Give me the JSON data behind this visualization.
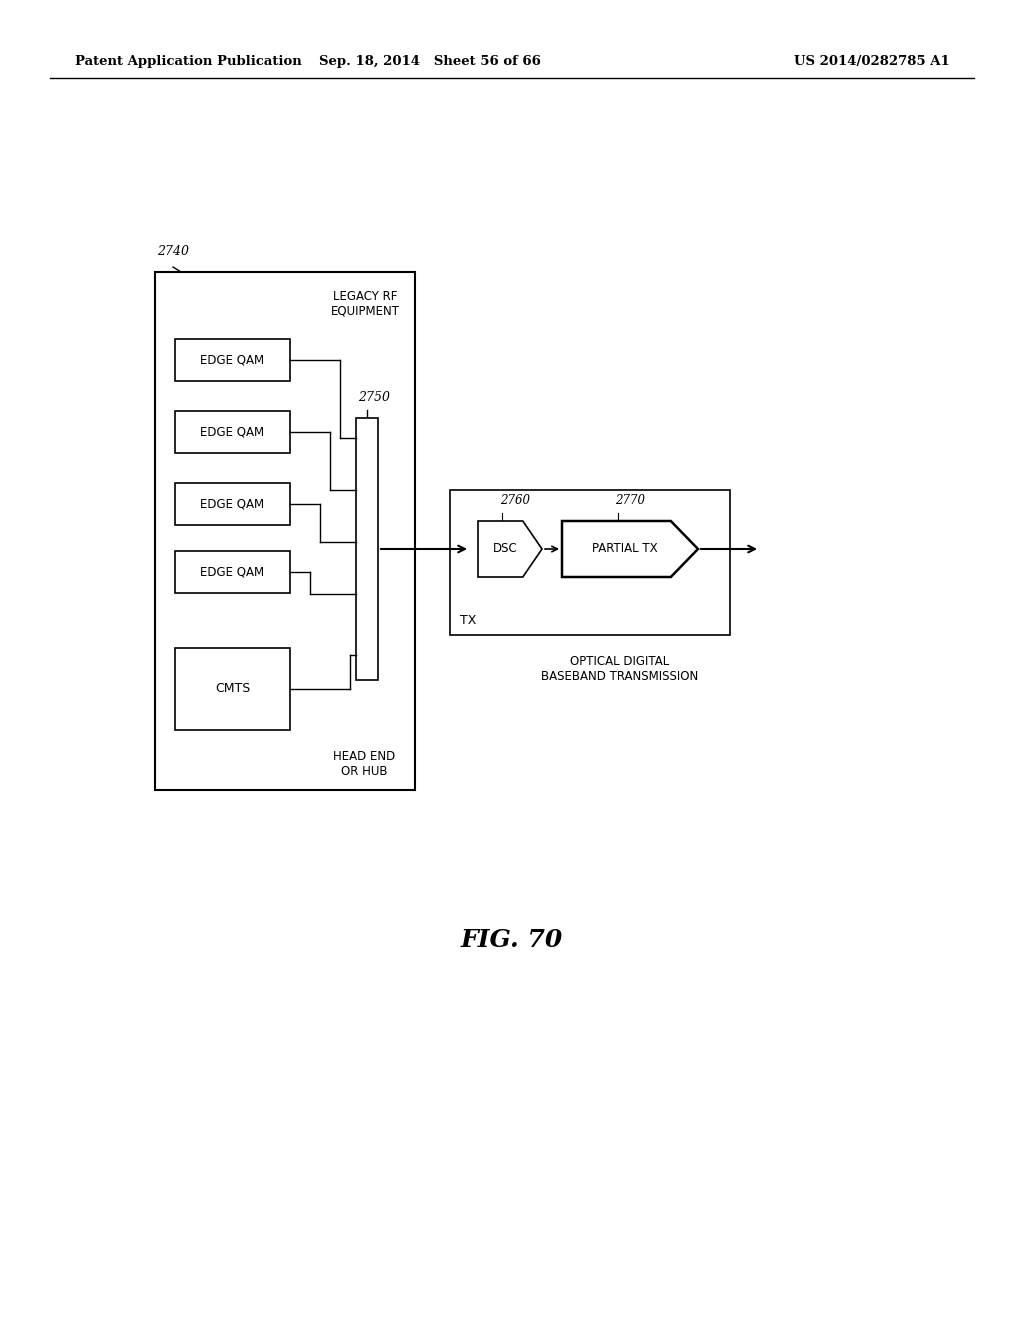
{
  "bg_color": "#ffffff",
  "header_left": "Patent Application Publication",
  "header_mid": "Sep. 18, 2014   Sheet 56 of 66",
  "header_right": "US 2014/0282785 A1",
  "fig_label": "FIG. 70",
  "outer_box_label": "2740",
  "legacy_rf_label": "LEGACY RF\nEQUIPMENT",
  "edge_qam_labels": [
    "EDGE QAM",
    "EDGE QAM",
    "EDGE QAM",
    "EDGE QAM"
  ],
  "cmts_label": "CMTS",
  "combiner_label": "2750",
  "head_end_label": "HEAD END\nOR HUB",
  "tx_label": "TX",
  "dsc_label": "DSC",
  "dsc_ref": "2760",
  "partial_tx_label": "PARTIAL TX",
  "partial_tx_ref": "2770",
  "optical_label": "OPTICAL DIGITAL\nBASEBAND TRANSMISSION"
}
